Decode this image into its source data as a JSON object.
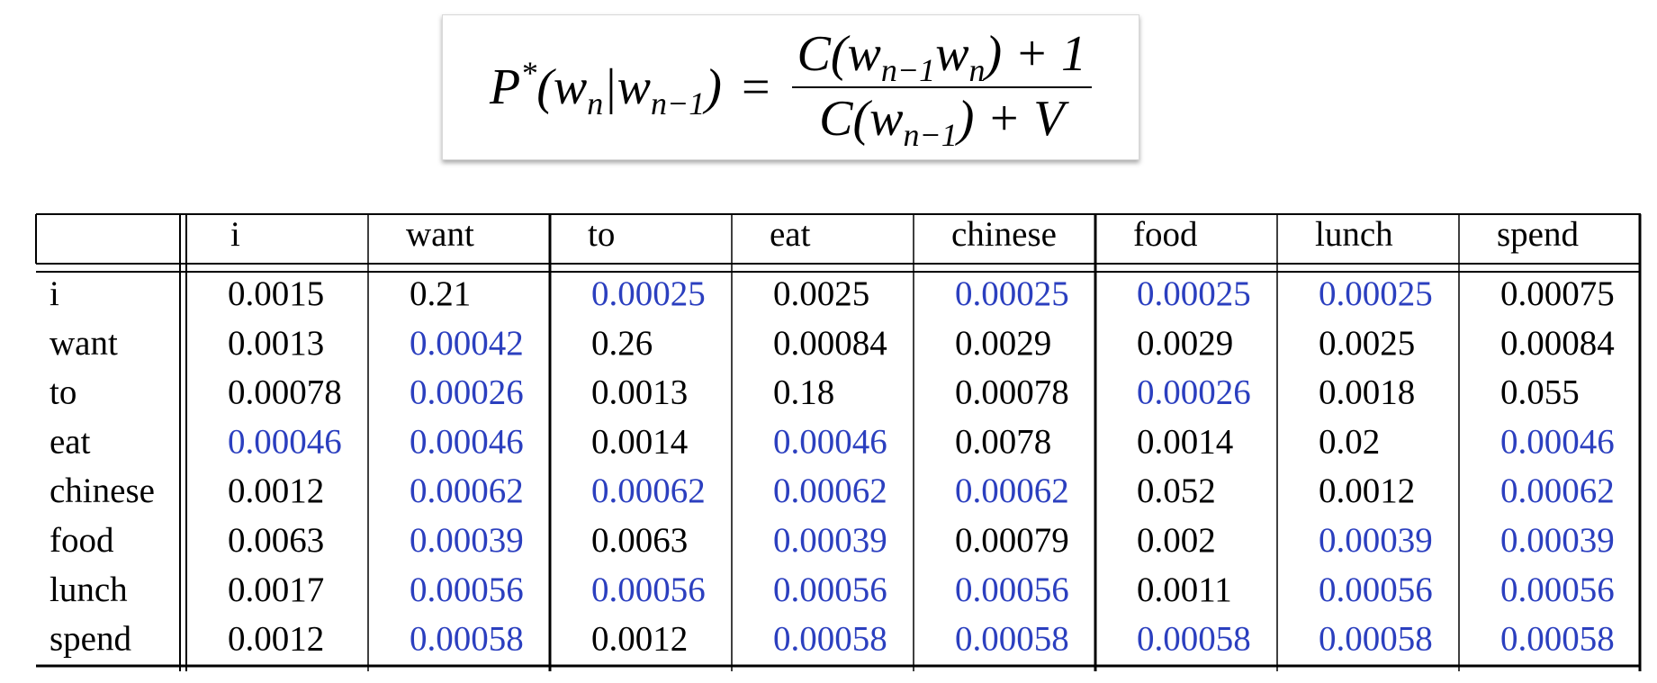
{
  "formula": {
    "lhs": [
      {
        "text": "P"
      },
      {
        "text": "*",
        "pos": "sup"
      },
      {
        "text": "(w"
      },
      {
        "text": "n",
        "pos": "sub"
      },
      {
        "text": "|w"
      },
      {
        "text": "n−1",
        "pos": "sub"
      },
      {
        "text": ")"
      }
    ],
    "equals": "=",
    "numerator": [
      {
        "text": "C(w"
      },
      {
        "text": "n−1",
        "pos": "sub"
      },
      {
        "text": "w"
      },
      {
        "text": "n",
        "pos": "sub"
      },
      {
        "text": ") + 1"
      }
    ],
    "denominator": [
      {
        "text": "C(w"
      },
      {
        "text": "n−1",
        "pos": "sub"
      },
      {
        "text": ") + V"
      }
    ]
  },
  "table": {
    "columns": [
      "i",
      "want",
      "to",
      "eat",
      "chinese",
      "food",
      "lunch",
      "spend"
    ],
    "rows": [
      {
        "label": "i",
        "cells": [
          "0.0015",
          "0.21",
          "0.00025",
          "0.0025",
          "0.00025",
          "0.00025",
          "0.00025",
          "0.00075"
        ],
        "colors": [
          "#000000",
          "#000000",
          "#2b3fbf",
          "#000000",
          "#2b3fbf",
          "#2b3fbf",
          "#2b3fbf",
          "#000000"
        ]
      },
      {
        "label": "want",
        "cells": [
          "0.0013",
          "0.00042",
          "0.26",
          "0.00084",
          "0.0029",
          "0.0029",
          "0.0025",
          "0.00084"
        ],
        "colors": [
          "#000000",
          "#2b3fbf",
          "#000000",
          "#000000",
          "#000000",
          "#000000",
          "#000000",
          "#000000"
        ]
      },
      {
        "label": "to",
        "cells": [
          "0.00078",
          "0.00026",
          "0.0013",
          "0.18",
          "0.00078",
          "0.00026",
          "0.0018",
          "0.055"
        ],
        "colors": [
          "#000000",
          "#2b3fbf",
          "#000000",
          "#000000",
          "#000000",
          "#2b3fbf",
          "#000000",
          "#000000"
        ]
      },
      {
        "label": "eat",
        "cells": [
          "0.00046",
          "0.00046",
          "0.0014",
          "0.00046",
          "0.0078",
          "0.0014",
          "0.02",
          "0.00046"
        ],
        "colors": [
          "#2b3fbf",
          "#2b3fbf",
          "#000000",
          "#2b3fbf",
          "#000000",
          "#000000",
          "#000000",
          "#2b3fbf"
        ]
      },
      {
        "label": "chinese",
        "cells": [
          "0.0012",
          "0.00062",
          "0.00062",
          "0.00062",
          "0.00062",
          "0.052",
          "0.0012",
          "0.00062"
        ],
        "colors": [
          "#000000",
          "#2b3fbf",
          "#2b3fbf",
          "#2b3fbf",
          "#2b3fbf",
          "#000000",
          "#000000",
          "#2b3fbf"
        ]
      },
      {
        "label": "food",
        "cells": [
          "0.0063",
          "0.00039",
          "0.0063",
          "0.00039",
          "0.00079",
          "0.002",
          "0.00039",
          "0.00039"
        ],
        "colors": [
          "#000000",
          "#2b3fbf",
          "#000000",
          "#2b3fbf",
          "#000000",
          "#000000",
          "#2b3fbf",
          "#2b3fbf"
        ]
      },
      {
        "label": "lunch",
        "cells": [
          "0.0017",
          "0.00056",
          "0.00056",
          "0.00056",
          "0.00056",
          "0.0011",
          "0.00056",
          "0.00056"
        ],
        "colors": [
          "#000000",
          "#2b3fbf",
          "#2b3fbf",
          "#2b3fbf",
          "#2b3fbf",
          "#000000",
          "#2b3fbf",
          "#2b3fbf"
        ]
      },
      {
        "label": "spend",
        "cells": [
          "0.0012",
          "0.00058",
          "0.0012",
          "0.00058",
          "0.00058",
          "0.00058",
          "0.00058",
          "0.00058"
        ],
        "colors": [
          "#000000",
          "#2b3fbf",
          "#000000",
          "#2b3fbf",
          "#2b3fbf",
          "#2b3fbf",
          "#2b3fbf",
          "#2b3fbf"
        ]
      }
    ]
  }
}
